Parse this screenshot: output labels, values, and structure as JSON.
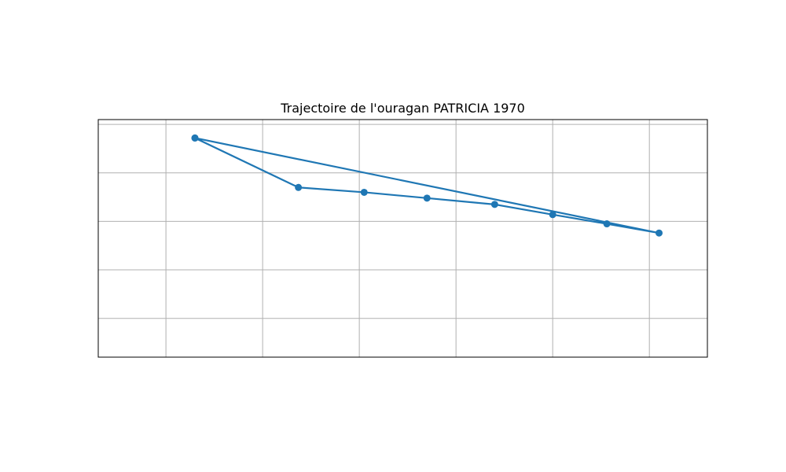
{
  "chart_data": {
    "type": "line",
    "title": "Trajectoire de l'ouragan PATRICIA 1970",
    "xlabel": "",
    "ylabel": "",
    "xlim": [
      -110.7,
      -104.4
    ],
    "ylim": [
      11.2,
      16.1
    ],
    "xgrid": [
      -110,
      -109,
      -108,
      -107,
      -106,
      -105
    ],
    "ygrid": [
      12,
      13,
      14,
      15,
      16
    ],
    "grid": true,
    "axis_ticks_visible": false,
    "series": [
      {
        "color": "#1f77b4",
        "marker": "circle",
        "x": [
          -109.7,
          -104.9,
          -105.44,
          -106.0,
          -106.6,
          -107.3,
          -107.95,
          -108.63,
          -109.7
        ],
        "y": [
          15.72,
          13.76,
          13.95,
          14.14,
          14.35,
          14.48,
          14.6,
          14.7,
          15.72
        ]
      }
    ]
  }
}
